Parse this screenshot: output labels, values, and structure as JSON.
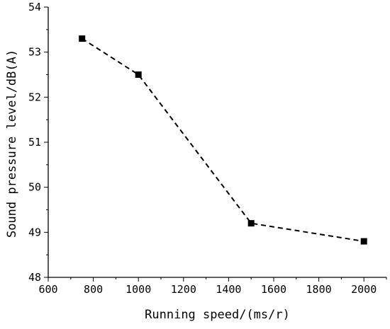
{
  "chart_data": {
    "type": "line",
    "title": "",
    "xlabel": "Running speed/(ms/r)",
    "ylabel": "Sound pressure level/dB(A)",
    "xlim": [
      600,
      2100
    ],
    "ylim": [
      48,
      54
    ],
    "x_ticks": [
      600,
      800,
      1000,
      1200,
      1400,
      1600,
      1800,
      2000
    ],
    "y_ticks": [
      48,
      49,
      50,
      51,
      52,
      53,
      54
    ],
    "grid": false,
    "legend": "none",
    "series": [
      {
        "x": [
          750,
          1000,
          1500,
          2000
        ],
        "y": [
          53.3,
          52.5,
          49.2,
          48.8
        ],
        "marker": "square",
        "line_style": "dashed",
        "color": "#000000"
      }
    ]
  }
}
